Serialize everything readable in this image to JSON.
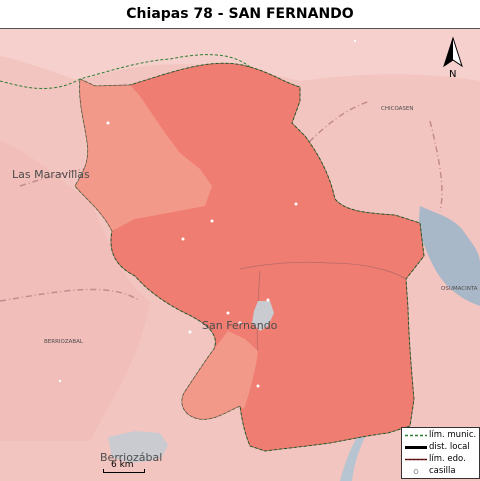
{
  "map": {
    "title": "Chiapas 78 - SAN FERNANDO",
    "place_labels": {
      "las_maravillas": "Las Maravillas",
      "san_fernando": "San Fernando",
      "berriozabal_town": "Berriozábal",
      "berriozabal_area": "BERRIOZABAL",
      "chicoasen": "CHICOASEN",
      "osumacinta": "OSUMACINTA"
    },
    "scale_label": "6 km",
    "north_label": "N",
    "legend": [
      {
        "symbol": "municipal-boundary",
        "label": "lím. munic."
      },
      {
        "symbol": "local-district",
        "label": "dist. local"
      },
      {
        "symbol": "state-boundary",
        "label": "lím. edo."
      },
      {
        "symbol": "polling-station",
        "label": "casilla"
      }
    ],
    "colors": {
      "district_main": "#ef7d72",
      "district_secondary": "#f2998a",
      "background": "#f3c5c0",
      "water": "#a9b8c8",
      "urban": "#c9cbd0",
      "municipal_boundary": "#2e7d32",
      "road": "#c48b90"
    }
  }
}
